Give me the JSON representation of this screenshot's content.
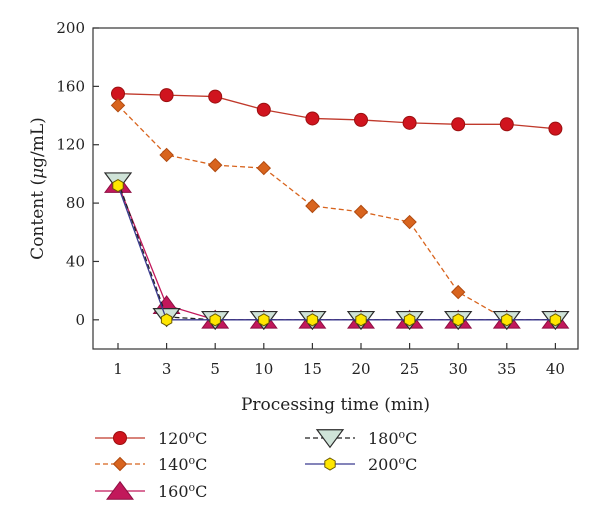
{
  "chart_data": {
    "type": "line",
    "title": "",
    "xlabel": "Processing time (min)",
    "ylabel": "Content (μg/mL)",
    "ylabel_parts": [
      "Content (",
      "μ",
      "g/mL)"
    ],
    "categories": [
      "1",
      "3",
      "5",
      "10",
      "15",
      "20",
      "25",
      "30",
      "35",
      "40"
    ],
    "ylim": [
      -20,
      200
    ],
    "yticks": [
      0,
      40,
      80,
      120,
      160,
      200
    ],
    "ytick_labels": [
      "0",
      "40",
      "80",
      "120",
      "160",
      "200"
    ],
    "grid": false,
    "legend_position": "bottom",
    "series": [
      {
        "name": "120°C",
        "label_num": "120",
        "label_sup": "o",
        "label_unit": "C",
        "color": "#c0392b",
        "fill": "#d0141e",
        "marker": "circle",
        "dash": false,
        "values": [
          155,
          154,
          153,
          144,
          138,
          137,
          135,
          134,
          134,
          131
        ]
      },
      {
        "name": "140°C",
        "label_num": "140",
        "label_sup": "o",
        "label_unit": "C",
        "color": "#d8641e",
        "fill": "#d8641e",
        "marker": "diamond",
        "dash": true,
        "values": [
          147,
          113,
          106,
          104,
          78,
          74,
          67,
          19,
          0,
          0
        ]
      },
      {
        "name": "160°C",
        "label_num": "160",
        "label_sup": "o",
        "label_unit": "C",
        "color": "#c2185b",
        "fill": "#c2185b",
        "marker": "triangle-up",
        "dash": false,
        "values": [
          93,
          10,
          0,
          0,
          0,
          0,
          0,
          0,
          0,
          0
        ]
      },
      {
        "name": "180°C",
        "label_num": "180",
        "label_sup": "o",
        "label_unit": "C",
        "color": "#222222",
        "fill": "#cfe3d8",
        "marker": "triangle-down",
        "dash": true,
        "values": [
          95,
          2,
          0,
          0,
          0,
          0,
          0,
          0,
          0,
          0
        ]
      },
      {
        "name": "200°C",
        "label_num": "200",
        "label_sup": "o",
        "label_unit": "C",
        "color": "#3b3b8f",
        "fill": "#ffe600",
        "marker": "hexagon",
        "dash": false,
        "values": [
          92,
          0,
          0,
          0,
          0,
          0,
          0,
          0,
          0,
          0
        ]
      }
    ]
  }
}
